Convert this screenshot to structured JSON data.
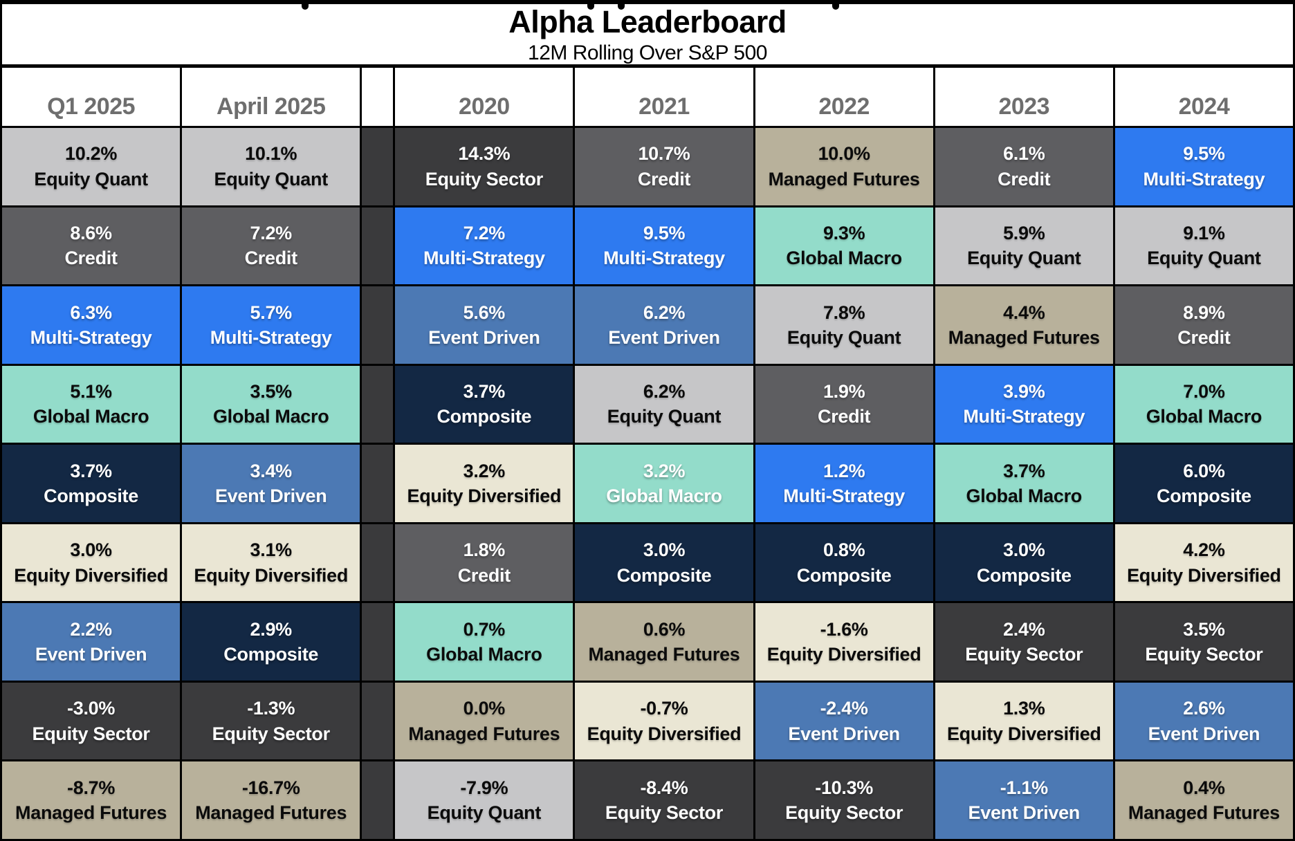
{
  "title": {
    "heading": "Alpha Leaderboard",
    "subtitle": "12M Rolling Over S&P 500"
  },
  "strategies": {
    "Equity Quant": {
      "bg": "#c6c6c8",
      "fg": "#0b0b0b"
    },
    "Credit": {
      "bg": "#5e5e61",
      "fg": "#ffffff"
    },
    "Multi-Strategy": {
      "bg": "#2e7af0",
      "fg": "#ffffff"
    },
    "Global Macro": {
      "bg": "#93dcca",
      "fg": "#0b0b0b"
    },
    "Composite": {
      "bg": "#132844",
      "fg": "#ffffff"
    },
    "Equity Diversified": {
      "bg": "#eae6d4",
      "fg": "#0b0b0b"
    },
    "Event Driven": {
      "bg": "#4c79b4",
      "fg": "#ffffff"
    },
    "Equity Sector": {
      "bg": "#3b3b3d",
      "fg": "#ffffff"
    },
    "Managed Futures": {
      "bg": "#b8b19b",
      "fg": "#0b0b0b"
    }
  },
  "chart_data": {
    "type": "table",
    "title": "Alpha Leaderboard",
    "subtitle": "12M Rolling Over S&P 500",
    "columns": [
      "Q1 2025",
      "April 2025",
      "2020",
      "2021",
      "2022",
      "2023",
      "2024"
    ],
    "spacer_after_column_index": 1,
    "rows": [
      [
        {
          "value": "10.2%",
          "strategy": "Equity Quant"
        },
        {
          "value": "10.1%",
          "strategy": "Equity Quant"
        },
        {
          "value": "14.3%",
          "strategy": "Equity Sector"
        },
        {
          "value": "10.7%",
          "strategy": "Credit"
        },
        {
          "value": "10.0%",
          "strategy": "Managed Futures"
        },
        {
          "value": "6.1%",
          "strategy": "Credit"
        },
        {
          "value": "9.5%",
          "strategy": "Multi-Strategy"
        }
      ],
      [
        {
          "value": "8.6%",
          "strategy": "Credit"
        },
        {
          "value": "7.2%",
          "strategy": "Credit"
        },
        {
          "value": "7.2%",
          "strategy": "Multi-Strategy"
        },
        {
          "value": "9.5%",
          "strategy": "Multi-Strategy"
        },
        {
          "value": "9.3%",
          "strategy": "Global Macro"
        },
        {
          "value": "5.9%",
          "strategy": "Equity Quant"
        },
        {
          "value": "9.1%",
          "strategy": "Equity Quant"
        }
      ],
      [
        {
          "value": "6.3%",
          "strategy": "Multi-Strategy"
        },
        {
          "value": "5.7%",
          "strategy": "Multi-Strategy"
        },
        {
          "value": "5.6%",
          "strategy": "Event Driven"
        },
        {
          "value": "6.2%",
          "strategy": "Event Driven"
        },
        {
          "value": "7.8%",
          "strategy": "Equity Quant"
        },
        {
          "value": "4.4%",
          "strategy": "Managed Futures"
        },
        {
          "value": "8.9%",
          "strstrategy_note": "",
          "strategy": "Credit"
        }
      ],
      [
        {
          "value": "5.1%",
          "strategy": "Global Macro"
        },
        {
          "value": "3.5%",
          "strategy": "Global Macro"
        },
        {
          "value": "3.7%",
          "strategy": "Composite"
        },
        {
          "value": "6.2%",
          "strategy": "Equity Quant"
        },
        {
          "value": "1.9%",
          "strategy": "Credit"
        },
        {
          "value": "3.9%",
          "strategy": "Multi-Strategy"
        },
        {
          "value": "7.0%",
          "strategy": "Global Macro"
        }
      ],
      [
        {
          "value": "3.7%",
          "strategy": "Composite"
        },
        {
          "value": "3.4%",
          "strategy": "Event Driven"
        },
        {
          "value": "3.2%",
          "strategy": "Equity Diversified"
        },
        {
          "value": "3.2%",
          "strategy": "Global Macro",
          "fg_override": "#ffffff"
        },
        {
          "value": "1.2%",
          "strategy": "Multi-Strategy"
        },
        {
          "value": "3.7%",
          "strategy": "Global Macro"
        },
        {
          "value": "6.0%",
          "strategy": "Composite"
        }
      ],
      [
        {
          "value": "3.0%",
          "strategy": "Equity Diversified"
        },
        {
          "value": "3.1%",
          "strategy": "Equity Diversified"
        },
        {
          "value": "1.8%",
          "strategy": "Credit"
        },
        {
          "value": "3.0%",
          "strategy": "Composite"
        },
        {
          "value": "0.8%",
          "strategy": "Composite"
        },
        {
          "value": "3.0%",
          "strategy": "Composite"
        },
        {
          "value": "4.2%",
          "strategy": "Equity Diversified"
        }
      ],
      [
        {
          "value": "2.2%",
          "strategy": "Event Driven"
        },
        {
          "value": "2.9%",
          "strategy": "Composite"
        },
        {
          "value": "0.7%",
          "strategy": "Global Macro"
        },
        {
          "value": "0.6%",
          "strategy": "Managed Futures"
        },
        {
          "value": "-1.6%",
          "strategy": "Equity Diversified"
        },
        {
          "value": "2.4%",
          "strategy": "Equity Sector"
        },
        {
          "value": "3.5%",
          "strstrategy_note": "",
          "strategy": "Equity Sector"
        }
      ],
      [
        {
          "value": "-3.0%",
          "strategy": "Equity Sector"
        },
        {
          "value": "-1.3%",
          "strategy": "Equity Sector"
        },
        {
          "value": "0.0%",
          "strategy": "Managed Futures"
        },
        {
          "value": "-0.7%",
          "strategy": "Equity Diversified"
        },
        {
          "value": "-2.4%",
          "strategy": "Event Driven"
        },
        {
          "value": "1.3%",
          "strategy": "Equity Diversified"
        },
        {
          "value": "2.6%",
          "strategy": "Event Driven"
        }
      ],
      [
        {
          "value": "-8.7%",
          "strategy": "Managed Futures"
        },
        {
          "value": "-16.7%",
          "strategy": "Managed Futures"
        },
        {
          "value": "-7.9%",
          "strategy": "Equity Quant"
        },
        {
          "value": "-8.4%",
          "strategy": "Equity Sector"
        },
        {
          "value": "-10.3%",
          "strategy": "Equity Sector"
        },
        {
          "value": "-1.1%",
          "strategy": "Event Driven"
        },
        {
          "value": "0.4%",
          "strategy": "Managed Futures"
        }
      ]
    ]
  }
}
